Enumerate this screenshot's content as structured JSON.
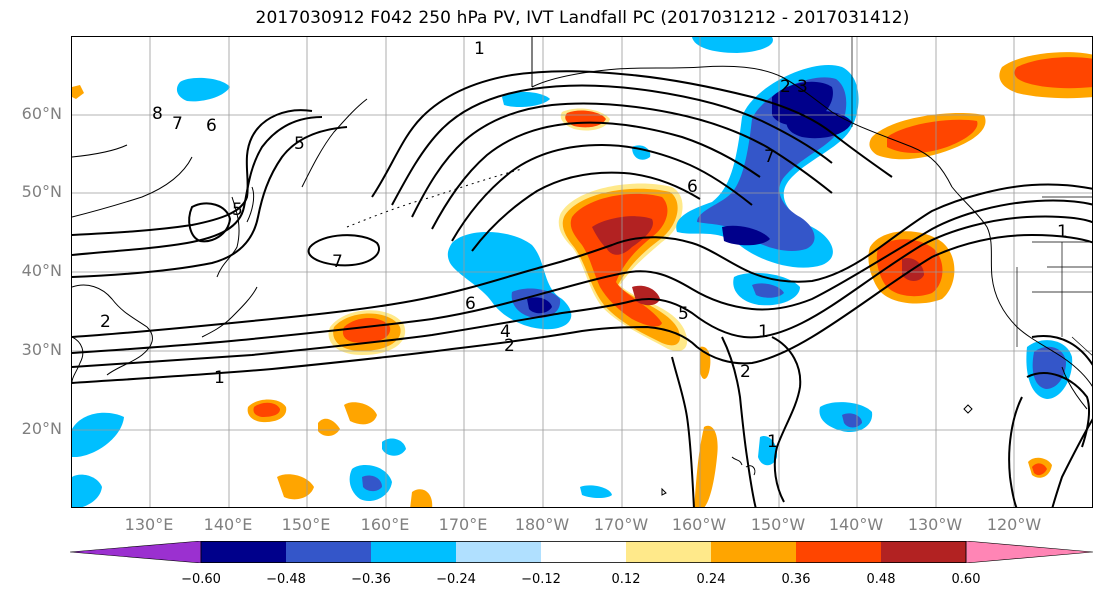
{
  "title": "2017030912 F042 250 hPa PV, IVT Landfall PC (2017031212 - 2017031412)",
  "lat_labels": [
    "60°N",
    "50°N",
    "40°N",
    "30°N",
    "20°N"
  ],
  "lon_labels": [
    "130°E",
    "140°E",
    "150°E",
    "160°E",
    "170°E",
    "180°W",
    "170°W",
    "160°W",
    "150°W",
    "140°W",
    "130°W",
    "120°W"
  ],
  "colorbar": {
    "ticks": [
      "−0.60",
      "−0.48",
      "−0.36",
      "−0.24",
      "−0.12",
      "0.12",
      "0.24",
      "0.36",
      "0.48",
      "0.60"
    ],
    "colors": [
      "#9b30d0",
      "#00008b",
      "#3456c9",
      "#00bfff",
      "#b0e0ff",
      "#ffffff",
      "#ffe98a",
      "#ffa500",
      "#ff4500",
      "#b22222",
      "#ff85b5"
    ]
  },
  "contour_labels": [
    "1",
    "2",
    "3",
    "4",
    "5",
    "6",
    "7",
    "8"
  ]
}
